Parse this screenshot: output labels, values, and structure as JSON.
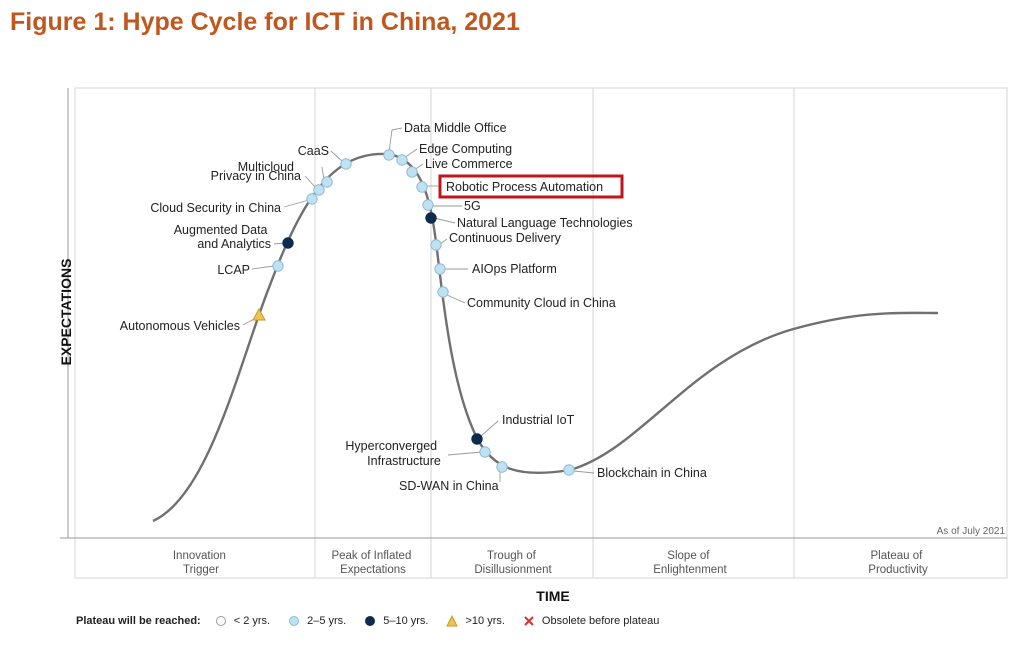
{
  "title": "Figure 1: Hype Cycle for ICT in China, 2021",
  "axes": {
    "y_label": "EXPECTATIONS",
    "x_label": "TIME"
  },
  "as_of": "As of July 2021",
  "phases": [
    {
      "id": "innovation",
      "lines": [
        "Innovation",
        "Trigger"
      ]
    },
    {
      "id": "peak",
      "lines": [
        "Peak of Inflated",
        "Expectations"
      ]
    },
    {
      "id": "trough",
      "lines": [
        "Trough of",
        "Disillusionment"
      ]
    },
    {
      "id": "slope",
      "lines": [
        "Slope of",
        "Enlightenment"
      ]
    },
    {
      "id": "plateau",
      "lines": [
        "Plateau of",
        "Productivity"
      ]
    }
  ],
  "technologies": [
    {
      "name": "Autonomous Vehicles",
      "plateau": ">10 yrs."
    },
    {
      "name": "LCAP",
      "plateau": "2–5 yrs."
    },
    {
      "name": "Augmented Data and Analytics",
      "lines": [
        "Augmented Data",
        "and Analytics"
      ],
      "plateau": "5–10 yrs."
    },
    {
      "name": "Cloud Security in China",
      "plateau": "2–5 yrs."
    },
    {
      "name": "Privacy in China",
      "plateau": "2–5 yrs."
    },
    {
      "name": "Multicloud",
      "plateau": "2–5 yrs."
    },
    {
      "name": "CaaS",
      "plateau": "2–5 yrs."
    },
    {
      "name": "Data Middle Office",
      "plateau": "2–5 yrs."
    },
    {
      "name": "Edge Computing",
      "plateau": "2–5 yrs."
    },
    {
      "name": "Live Commerce",
      "plateau": "2–5 yrs."
    },
    {
      "name": "Robotic Process Automation",
      "plateau": "2–5 yrs.",
      "highlighted": true
    },
    {
      "name": "5G",
      "plateau": "2–5 yrs."
    },
    {
      "name": "Natural Language Technologies",
      "plateau": "5–10 yrs."
    },
    {
      "name": "Continuous Delivery",
      "plateau": "2–5 yrs."
    },
    {
      "name": "AIOps Platform",
      "plateau": "2–5 yrs."
    },
    {
      "name": "Community Cloud in China",
      "plateau": "2–5 yrs."
    },
    {
      "name": "Industrial IoT",
      "plateau": "5–10 yrs."
    },
    {
      "name": "Hyperconverged Infrastructure",
      "lines": [
        "Hyperconverged",
        "Infrastructure"
      ],
      "plateau": "2–5 yrs."
    },
    {
      "name": "SD-WAN in China",
      "plateau": "2–5 yrs."
    },
    {
      "name": "Blockchain in China",
      "plateau": "2–5 yrs."
    }
  ],
  "legend": {
    "title": "Plateau will be reached:",
    "items": [
      {
        "id": "lt2",
        "label": "< 2 yrs.",
        "fill": "#ffffff",
        "stroke": "#999999",
        "shape": "circle"
      },
      {
        "id": "2to5",
        "label": "2–5 yrs.",
        "fill": "#bfe1f2",
        "stroke": "#8fbcd6",
        "shape": "circle"
      },
      {
        "id": "5to10",
        "label": "5–10 yrs.",
        "fill": "#0e2a4f",
        "stroke": "#0e2a4f",
        "shape": "circle"
      },
      {
        "id": "gt10",
        "label": ">10 yrs.",
        "fill": "#f2c14e",
        "stroke": "#c79a2a",
        "shape": "triangle"
      },
      {
        "id": "obsolete",
        "label": "Obsolete before plateau",
        "fill": "#d9342b",
        "stroke": "#d9342b",
        "shape": "x"
      }
    ]
  },
  "colors": {
    "title": "#c0571f",
    "highlight_box": "#c0161b",
    "curve": "#707070"
  }
}
